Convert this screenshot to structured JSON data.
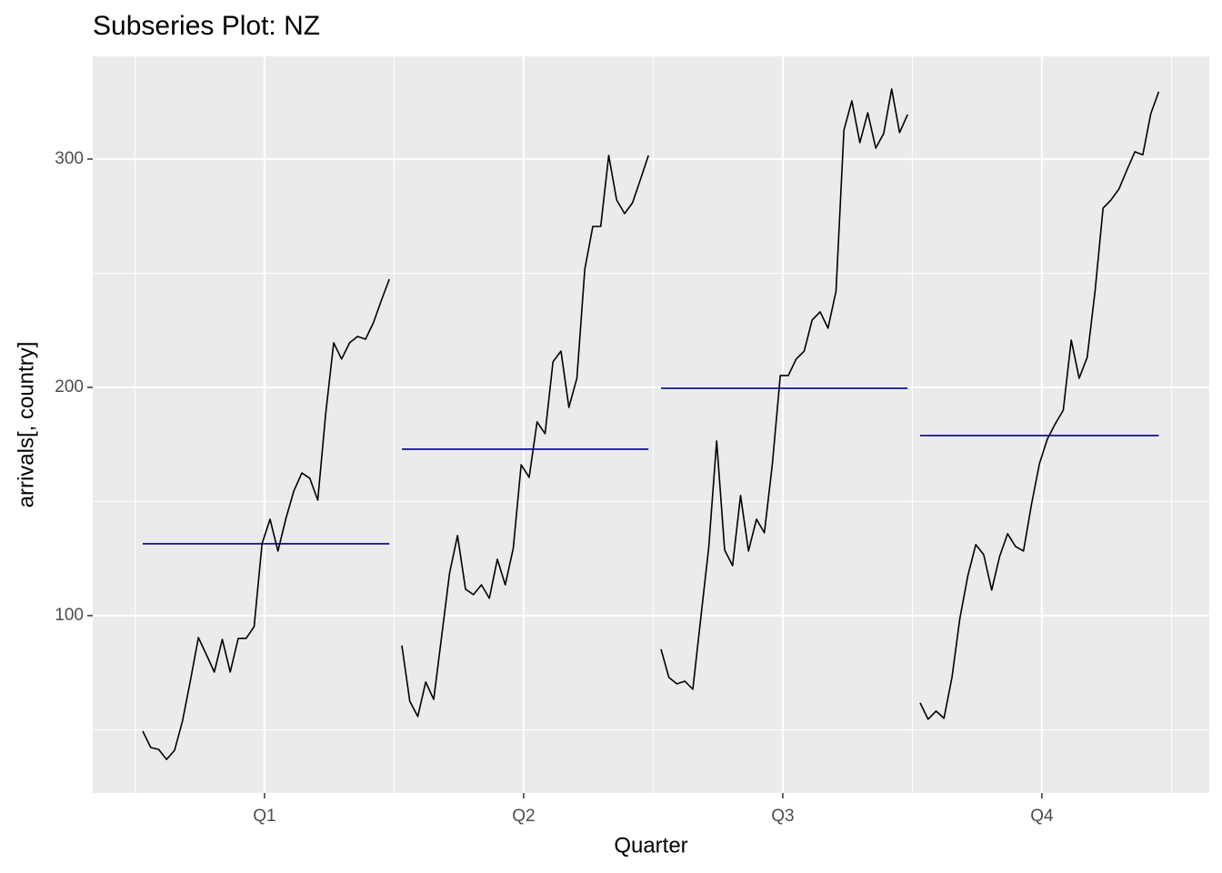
{
  "chart_data": {
    "type": "subseries",
    "title": "Subseries Plot: NZ",
    "x_label": "Quarter",
    "y_label": "arrivals[, country]",
    "xlim": [
      0.337,
      4.646
    ],
    "xticks": [
      {
        "value": 1,
        "label": "Q1"
      },
      {
        "value": 2,
        "label": "Q2"
      },
      {
        "value": 3,
        "label": "Q3"
      },
      {
        "value": 4,
        "label": "Q4"
      }
    ],
    "x_minor_grid": [
      0.5,
      1.5,
      2.5,
      3.5,
      4.5
    ],
    "ylim": [
      22.3,
      345
    ],
    "yticks": [
      100,
      200,
      300
    ],
    "y_minor_grid": [
      50,
      150,
      250
    ],
    "grid": true,
    "line_color": "#000000",
    "mean_color": "#00008b",
    "panels": [
      {
        "values": [
          49.4,
          42.2,
          41.4,
          37.0,
          41.0,
          53.8,
          71.7,
          90.4,
          82.9,
          75.3,
          89.6,
          75.3,
          90.0,
          90.0,
          95.2,
          131.5,
          142.2,
          128.3,
          142.6,
          154.6,
          162.5,
          160.2,
          150.6,
          188.4,
          219.5,
          212.4,
          219.5,
          222.3,
          221.1,
          228.3,
          238.2,
          247.4
        ],
        "mean": 131.5
      },
      {
        "values": [
          86.9,
          62.5,
          55.8,
          70.9,
          63.3,
          90.8,
          118.7,
          135.1,
          111.6,
          109.2,
          113.5,
          107.6,
          124.7,
          113.5,
          129.5,
          166.1,
          160.6,
          184.9,
          179.7,
          211.2,
          215.9,
          191.2,
          204.0,
          251.8,
          270.5,
          270.5,
          301.6,
          282.1,
          276.1,
          280.9,
          291.2,
          301.6
        ],
        "mean": 172.9
      },
      {
        "values": [
          85.3,
          72.9,
          70.1,
          71.3,
          67.7,
          98.8,
          129.9,
          176.5,
          128.7,
          121.9,
          152.6,
          128.3,
          142.2,
          136.3,
          166.5,
          205.2,
          205.2,
          212.4,
          215.9,
          229.5,
          233.1,
          225.9,
          242.2,
          312.7,
          325.5,
          307.2,
          320.3,
          304.8,
          311.2,
          330.7,
          311.6,
          319.5
        ],
        "mean": 199.6
      },
      {
        "values": [
          61.8,
          54.6,
          58.2,
          55.0,
          72.9,
          98.8,
          117.5,
          131.1,
          126.7,
          111.2,
          125.9,
          135.9,
          130.3,
          128.3,
          148.6,
          166.5,
          177.3,
          184.1,
          190.0,
          220.7,
          204.0,
          213.1,
          242.2,
          278.5,
          282.1,
          286.9,
          295.2,
          303.2,
          301.9,
          319.9,
          329.5
        ],
        "mean": 178.9
      }
    ]
  }
}
